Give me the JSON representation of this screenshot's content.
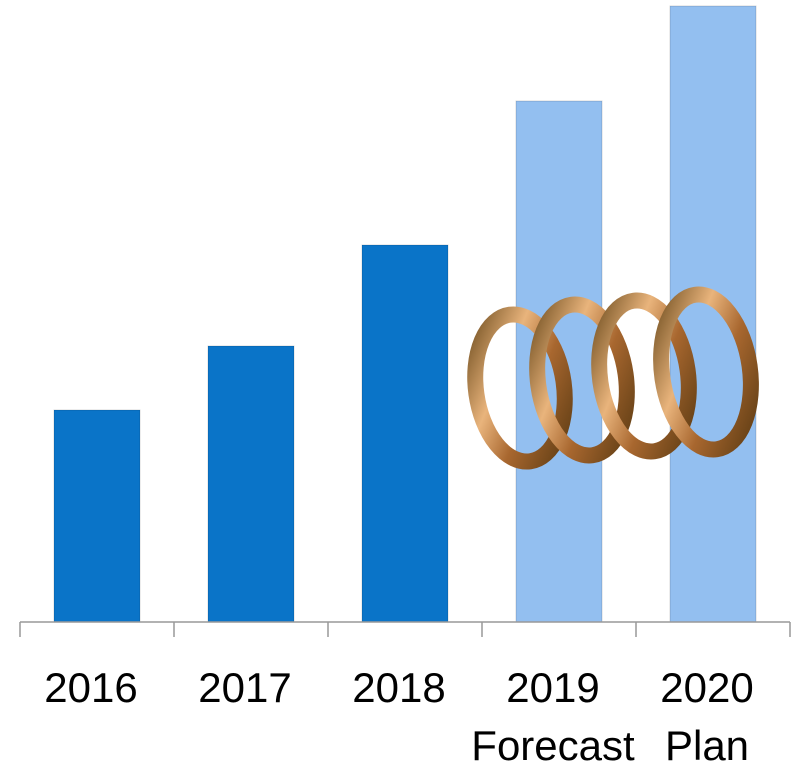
{
  "chart_data": {
    "type": "bar",
    "categories": [
      [
        "2016"
      ],
      [
        "2017"
      ],
      [
        "2018"
      ],
      [
        "2019",
        "Forecast"
      ],
      [
        "2020",
        "Plan"
      ]
    ],
    "values": [
      212,
      276,
      377,
      521,
      616
    ],
    "colors": [
      "#0a74c8",
      "#0a74c8",
      "#0a74c8",
      "#93bff0",
      "#93bff0"
    ],
    "ylim": [
      0,
      616
    ]
  }
}
